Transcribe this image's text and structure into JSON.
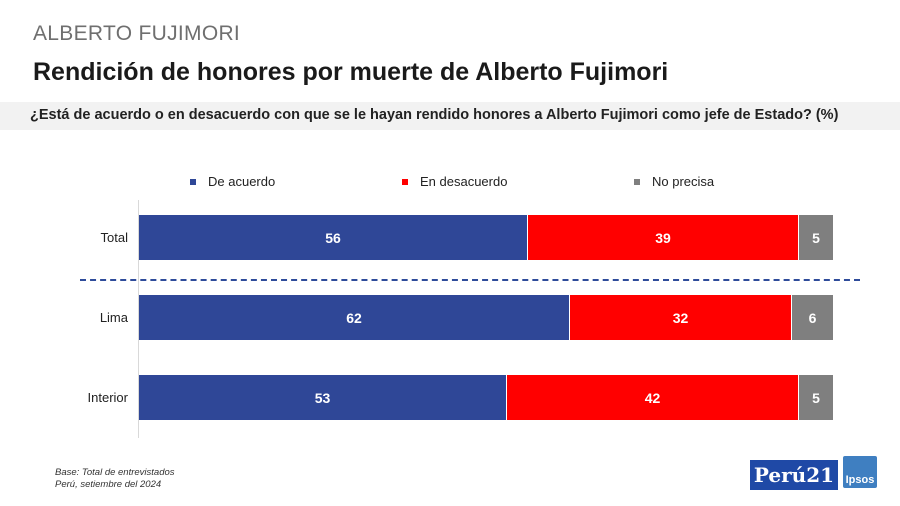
{
  "header": {
    "kicker": "ALBERTO FUJIMORI",
    "title": "Rendición de honores por muerte de Alberto Fujimori",
    "question": "¿Está de acuerdo o en desacuerdo con que se le hayan rendido honores a Alberto Fujimori como jefe de Estado? (%)"
  },
  "chart_data": {
    "type": "bar",
    "orientation": "horizontal",
    "stacked": true,
    "categories": [
      "Total",
      "Lima",
      "Interior"
    ],
    "series": [
      {
        "name": "De acuerdo",
        "color": "#2f4797",
        "values": [
          56,
          62,
          53
        ]
      },
      {
        "name": "En desacuerdo",
        "color": "#ff0000",
        "values": [
          39,
          32,
          42
        ]
      },
      {
        "name": "No precisa",
        "color": "#7f7f7f",
        "values": [
          5,
          6,
          5
        ]
      }
    ],
    "xlim": [
      0,
      100
    ],
    "legend": "top",
    "grid": false
  },
  "footer": {
    "base": "Base: Total de entrevistados",
    "place_date": "Perú, setiembre del 2024"
  },
  "logos": {
    "peru21": "Perú21",
    "ipsos": "Ipsos"
  }
}
